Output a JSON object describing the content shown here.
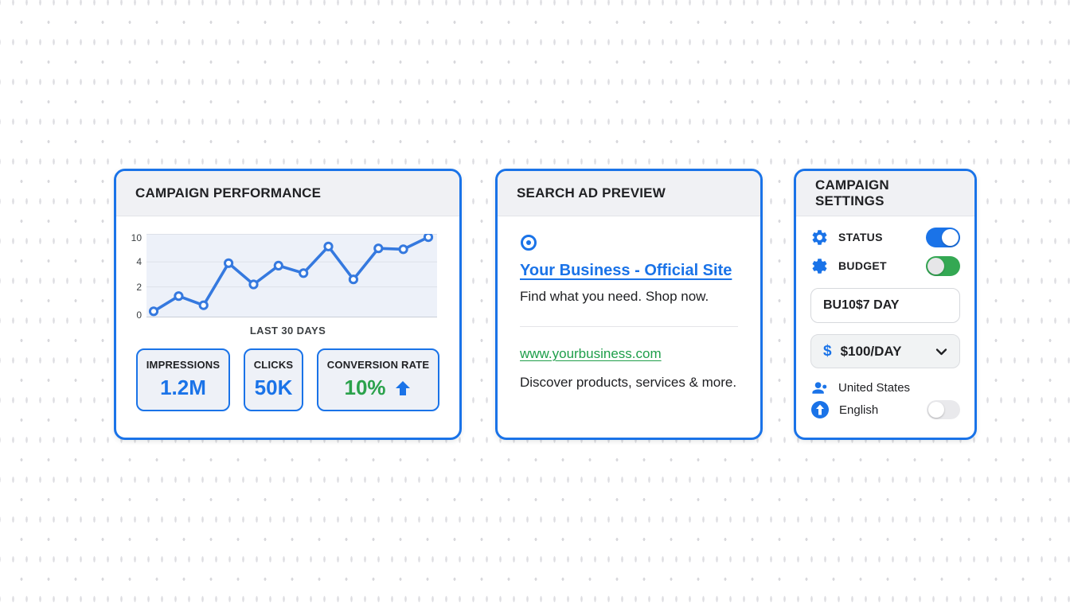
{
  "chart_data": {
    "type": "line",
    "title": "CAMPAIGN PERFORMANCE",
    "xlabel": "LAST 30 DAYS",
    "ylabel": "",
    "x": [
      1,
      2,
      3,
      4,
      5,
      6,
      7,
      8,
      9,
      10,
      11,
      12
    ],
    "values": [
      0.4,
      1.4,
      0.8,
      3.9,
      2.2,
      3.7,
      3.1,
      7.3,
      2.6,
      6.9,
      6.7,
      9.3
    ],
    "yticks": [
      0,
      2,
      4,
      10
    ],
    "ylim": [
      0,
      10
    ],
    "grid": true,
    "legend_position": "none",
    "line_color": "#3579df",
    "marker": "open-circle",
    "plot_background": "#edf1f9"
  },
  "performance": {
    "title": "CAMPAIGN PERFORMANCE",
    "caption": "LAST 30 DAYS",
    "metrics": [
      {
        "label": "IMPRESSIONS",
        "value": "1.2M"
      },
      {
        "label": "CLICKS",
        "value": "50K"
      },
      {
        "label": "CONVERSION RATE",
        "value": "10%",
        "trend": "up"
      }
    ]
  },
  "ad_preview": {
    "title": "SEARCH AD PREVIEW",
    "icon": "ad-target-icon",
    "headline": "Your Business - Official Site",
    "description": "Find what you need. Shop now.",
    "display_url": "www.yourbusiness.com",
    "footer_text": "Discover products, services & more."
  },
  "settings": {
    "title": "CAMPAIGN SETTINGS",
    "status": {
      "label": "STATUS",
      "state": "on",
      "icon": "gear-icon"
    },
    "budget": {
      "label": "BUDGET",
      "state": "on",
      "icon": "gear-icon"
    },
    "budget_input": {
      "value": "BU10$7 DAY"
    },
    "budget_select": {
      "icon_glyph": "$",
      "value": "$100/DAY",
      "icon": "dollar-icon"
    },
    "location": {
      "label": "United States",
      "icon": "people-icon"
    },
    "language": {
      "label": "English",
      "state": "off",
      "icon": "arrow-up-circle-icon"
    }
  },
  "colors": {
    "accent_blue": "#1a73e8",
    "toggle_green": "#34a853",
    "value_green": "#2ba24c",
    "url_green": "#1e9e4a",
    "text_dark": "#202124"
  }
}
